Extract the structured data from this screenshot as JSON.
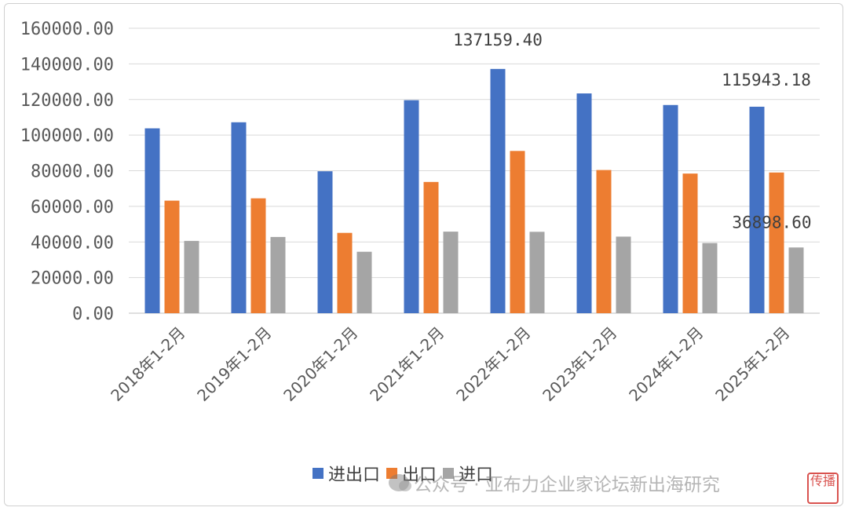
{
  "chart_data": {
    "type": "bar",
    "title": "",
    "xlabel": "",
    "ylabel": "",
    "ylim": [
      0,
      160000
    ],
    "yticks": [
      "0.00",
      "20000.00",
      "40000.00",
      "60000.00",
      "80000.00",
      "100000.00",
      "120000.00",
      "140000.00",
      "160000.00"
    ],
    "grid": true,
    "legend_position": "bottom",
    "categories": [
      "2018年1-2月",
      "2019年1-2月",
      "2020年1-2月",
      "2021年1-2月",
      "2022年1-2月",
      "2023年1-2月",
      "2024年1-2月",
      "2025年1-2月"
    ],
    "series": [
      {
        "name": "进出口",
        "color": "#4472C4",
        "values": [
          103800,
          107200,
          79700,
          119600,
          137159.4,
          123400,
          116900,
          115943.18
        ]
      },
      {
        "name": "出口",
        "color": "#ED7D31",
        "values": [
          63200,
          64500,
          45100,
          73700,
          91100,
          80400,
          78400,
          79000
        ]
      },
      {
        "name": "进口",
        "color": "#A5A5A5",
        "values": [
          40600,
          42800,
          34500,
          45800,
          45700,
          43000,
          39400,
          36898.6
        ]
      }
    ],
    "data_labels": [
      {
        "series": 0,
        "category": 4,
        "text": "137159.40"
      },
      {
        "series": 0,
        "category": 7,
        "text": "115943.18"
      },
      {
        "series": 2,
        "category": 7,
        "text": "36898.60"
      }
    ]
  },
  "watermark": {
    "text": "公众号 · 亚布力企业家论坛新出海研究",
    "icon": "wechat-icon"
  },
  "seal": {
    "text": "传播"
  }
}
